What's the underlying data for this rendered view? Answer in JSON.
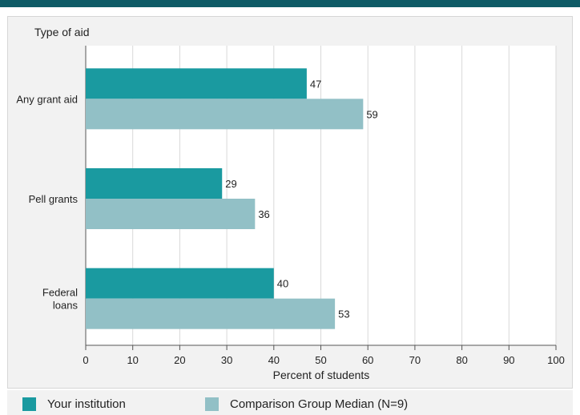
{
  "chart_data": {
    "type": "bar",
    "orientation": "horizontal",
    "ylabel": "Type of aid",
    "xlabel": "Percent of students",
    "categories": [
      "Any grant aid",
      "Pell grants",
      "Federal\nloans"
    ],
    "series": [
      {
        "name": "Your institution",
        "color": "#1a9aa0",
        "values": [
          47,
          29,
          40
        ]
      },
      {
        "name": "Comparison Group Median (N=9)",
        "color": "#92c0c6",
        "values": [
          59,
          36,
          53
        ]
      }
    ],
    "xlim": [
      0,
      100
    ],
    "xticks": [
      0,
      10,
      20,
      30,
      40,
      50,
      60,
      70,
      80,
      90,
      100
    ],
    "grid": true,
    "legend_position": "bottom"
  }
}
